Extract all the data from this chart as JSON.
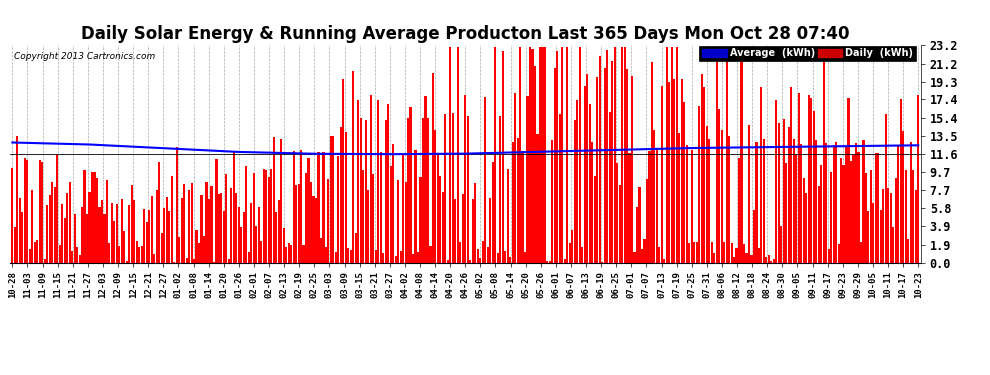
{
  "title": "Daily Solar Energy & Running Average Producton Last 365 Days Mon Oct 28 07:40",
  "copyright": "Copyright 2013 Cartronics.com",
  "ylabel_right": [
    "23.2",
    "21.2",
    "19.3",
    "17.4",
    "15.4",
    "13.5",
    "11.6",
    "9.7",
    "7.7",
    "5.8",
    "3.9",
    "1.9",
    "0.0"
  ],
  "yticks": [
    23.2,
    21.2,
    19.3,
    17.4,
    15.4,
    13.5,
    11.6,
    9.7,
    7.7,
    5.8,
    3.9,
    1.9,
    0.0
  ],
  "ylim": [
    0.0,
    23.2
  ],
  "bar_color": "#ff0000",
  "avg_color": "#0000ff",
  "background_color": "#ffffff",
  "plot_bg_color": "#ffffff",
  "grid_color": "#888888",
  "title_fontsize": 12,
  "legend_labels": [
    "Average  (kWh)",
    "Daily  (kWh)"
  ],
  "legend_colors_bg": [
    "#0000cc",
    "#cc0000"
  ],
  "xtick_labels": [
    "10-28",
    "11-03",
    "11-09",
    "11-15",
    "11-21",
    "11-27",
    "12-03",
    "12-09",
    "12-15",
    "12-21",
    "12-27",
    "01-02",
    "01-08",
    "01-14",
    "01-20",
    "01-26",
    "02-01",
    "02-07",
    "02-13",
    "02-19",
    "02-25",
    "03-03",
    "03-09",
    "03-15",
    "03-21",
    "03-27",
    "04-02",
    "04-08",
    "04-14",
    "04-20",
    "04-26",
    "05-02",
    "05-08",
    "05-14",
    "05-20",
    "05-26",
    "06-01",
    "06-07",
    "06-13",
    "06-19",
    "06-25",
    "07-01",
    "07-07",
    "07-13",
    "07-19",
    "07-25",
    "07-31",
    "08-06",
    "08-12",
    "08-18",
    "08-24",
    "08-30",
    "09-05",
    "09-11",
    "09-17",
    "09-23",
    "09-29",
    "10-05",
    "10-11",
    "10-17",
    "10-23"
  ],
  "n_bars": 365,
  "hline_y": 11.6,
  "avg_line_points": [
    [
      0,
      12.8
    ],
    [
      30,
      12.6
    ],
    [
      60,
      12.2
    ],
    [
      90,
      11.8
    ],
    [
      120,
      11.6
    ],
    [
      150,
      11.55
    ],
    [
      180,
      11.6
    ],
    [
      210,
      11.8
    ],
    [
      240,
      12.0
    ],
    [
      270,
      12.2
    ],
    [
      300,
      12.3
    ],
    [
      330,
      12.4
    ],
    [
      364,
      12.5
    ]
  ]
}
